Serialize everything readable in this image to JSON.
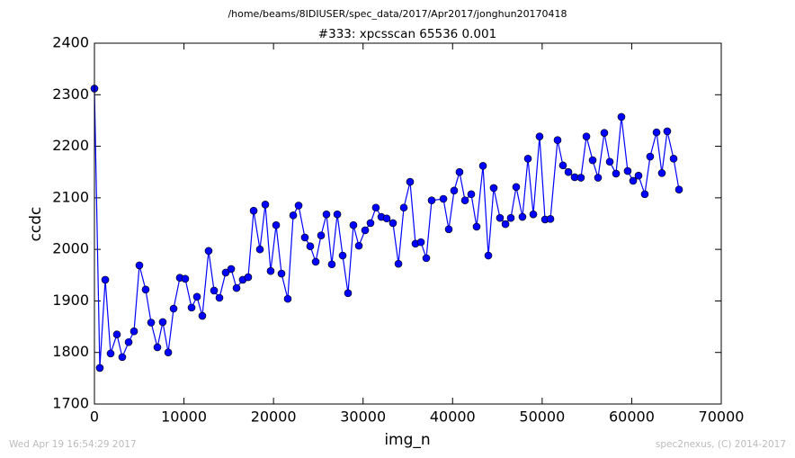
{
  "chart_data": {
    "type": "line",
    "suptitle": "/home/beams/8IDIUSER/spec_data/2017/Apr2017/jonghun20170418",
    "title": "#333: xpcsscan 65536 0.001",
    "xlabel": "img_n",
    "ylabel": "ccdc",
    "footer_left": "Wed Apr 19 16:54:29 2017",
    "footer_right": "spec2nexus, (C) 2014-2017",
    "x": [
      0,
      600,
      1210,
      1810,
      2510,
      3110,
      3820,
      4420,
      5020,
      5720,
      6330,
      7030,
      7630,
      8240,
      8840,
      9540,
      10140,
      10850,
      11450,
      12050,
      12750,
      13360,
      13960,
      14660,
      15270,
      15870,
      16570,
      17170,
      17780,
      18480,
      19080,
      19680,
      20290,
      20890,
      21590,
      22200,
      22800,
      23500,
      24100,
      24710,
      25310,
      25910,
      26510,
      27120,
      27720,
      28320,
      28920,
      29530,
      30230,
      30830,
      31430,
      32040,
      32640,
      33340,
      33950,
      34550,
      35250,
      35850,
      36460,
      37060,
      37660,
      38970,
      39570,
      40170,
      40770,
      41380,
      42080,
      42680,
      43390,
      43990,
      44590,
      45290,
      45900,
      46500,
      47100,
      47800,
      48410,
      49010,
      49710,
      50320,
      50920,
      51720,
      52320,
      52930,
      53630,
      54330,
      54940,
      55640,
      56240,
      56940,
      57550,
      58250,
      58850,
      59550,
      60160,
      60760,
      61460,
      62060,
      62770,
      63370,
      63970,
      64680,
      65280
    ],
    "series": [
      {
        "color": "#0000ff",
        "values": [
          2312,
          1770,
          1941,
          1798,
          1835,
          1791,
          1820,
          1841,
          1969,
          1922,
          1858,
          1810,
          1859,
          1800,
          1885,
          1945,
          1943,
          1887,
          1908,
          1871,
          1997,
          1920,
          1906,
          1955,
          1962,
          1925,
          1941,
          1946,
          2075,
          2000,
          2087,
          1958,
          2047,
          1953,
          1904,
          2066,
          2085,
          2023,
          2006,
          1976,
          2027,
          2068,
          1971,
          2068,
          1988,
          1915,
          2047,
          2007,
          2037,
          2051,
          2081,
          2063,
          2060,
          2051,
          1972,
          2081,
          2131,
          2011,
          2014,
          1983,
          2095,
          2098,
          2039,
          2114,
          2150,
          2095,
          2107,
          2044,
          2162,
          1988,
          2119,
          2061,
          2049,
          2061,
          2121,
          2063,
          2176,
          2068,
          2219,
          2058,
          2059,
          2212,
          2163,
          2150,
          2140,
          2139,
          2219,
          2173,
          2139,
          2226,
          2170,
          2147,
          2257,
          2152,
          2133,
          2143,
          2107,
          2180,
          2227,
          2148,
          2229,
          2176,
          2116
        ]
      }
    ],
    "xlim": [
      0,
      70000
    ],
    "ylim": [
      1700,
      2400
    ],
    "xticks": [
      0,
      10000,
      20000,
      30000,
      40000,
      50000,
      60000,
      70000
    ],
    "yticks": [
      1700,
      1800,
      1900,
      2000,
      2100,
      2200,
      2300,
      2400
    ],
    "grid": false
  }
}
